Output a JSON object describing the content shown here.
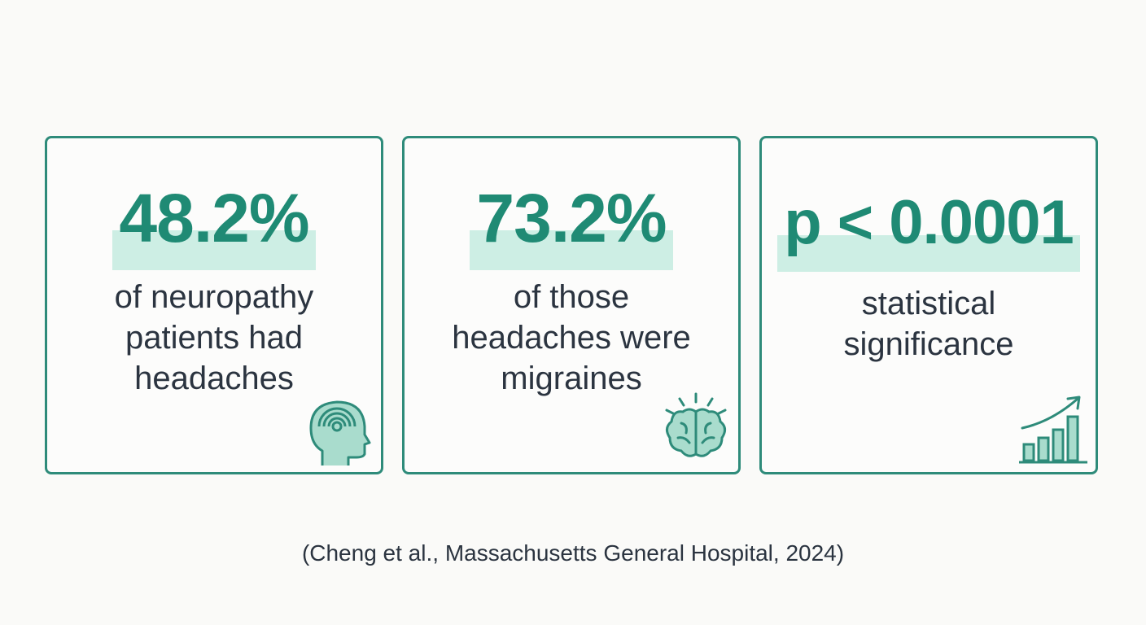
{
  "cards": [
    {
      "stat": "48.2%",
      "description": [
        "of neuropathy",
        "patients had",
        "headaches"
      ]
    },
    {
      "stat": "73.2%",
      "description": [
        "of those",
        "headaches were",
        "migraines"
      ]
    },
    {
      "stat": "p < 0.0001",
      "description": [
        "statistical",
        "significance"
      ]
    }
  ],
  "citation": "(Cheng et al., Massachusetts General Hospital, 2024)"
}
